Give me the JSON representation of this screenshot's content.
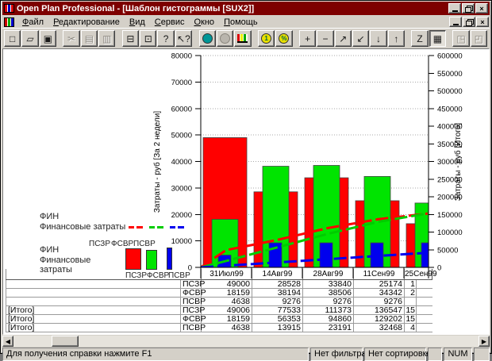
{
  "window": {
    "title": "Open Plan Professional - [Шаблон гистограммы [SUX2]]",
    "controls": {
      "minimize": "minimize",
      "restore": "restore",
      "close": "×"
    }
  },
  "menus": [
    {
      "name": "file",
      "label": "Файл"
    },
    {
      "name": "edit",
      "label": "Редактирование"
    },
    {
      "name": "view",
      "label": "Вид"
    },
    {
      "name": "service",
      "label": "Сервис"
    },
    {
      "name": "window",
      "label": "Окно"
    },
    {
      "name": "help",
      "label": "Помощь"
    }
  ],
  "toolbar": {
    "buttons": [
      {
        "name": "new",
        "glyph": "□",
        "enabled": true
      },
      {
        "name": "open",
        "glyph": "▱",
        "enabled": true
      },
      {
        "name": "save",
        "glyph": "▣",
        "enabled": true
      },
      {
        "type": "sep"
      },
      {
        "name": "cut",
        "glyph": "✂",
        "enabled": false
      },
      {
        "name": "copy",
        "glyph": "▤",
        "enabled": false
      },
      {
        "name": "paste",
        "glyph": "▥",
        "enabled": false
      },
      {
        "type": "sep"
      },
      {
        "name": "print",
        "glyph": "⊟",
        "enabled": true
      },
      {
        "name": "print-preview",
        "glyph": "⊡",
        "enabled": true
      },
      {
        "name": "help",
        "glyph": "?",
        "enabled": true
      },
      {
        "name": "context-help",
        "glyph": "↖?",
        "enabled": true
      },
      {
        "type": "sep"
      },
      {
        "name": "time-analysis",
        "kind": "circ-teal",
        "glyph": "",
        "enabled": true
      },
      {
        "name": "resource-analysis",
        "kind": "circ-gray",
        "glyph": "",
        "enabled": false
      },
      {
        "name": "histogram-view",
        "kind": "minichart",
        "glyph": "",
        "enabled": true
      },
      {
        "type": "sep"
      },
      {
        "name": "cost-mode",
        "kind": "circ-yellow",
        "glyph": "1",
        "enabled": true
      },
      {
        "name": "percent-mode",
        "kind": "circ-yellow",
        "glyph": "%",
        "enabled": true
      },
      {
        "type": "sep"
      },
      {
        "name": "add",
        "glyph": "+",
        "enabled": true
      },
      {
        "name": "remove",
        "glyph": "−",
        "enabled": true
      },
      {
        "name": "assign-forward",
        "glyph": "↗",
        "enabled": true
      },
      {
        "name": "assign-back",
        "glyph": "↙",
        "enabled": true
      },
      {
        "name": "move-down",
        "glyph": "↓",
        "enabled": true
      },
      {
        "name": "move-up",
        "glyph": "↑",
        "enabled": true
      },
      {
        "type": "sep"
      },
      {
        "name": "zoom-mode",
        "glyph": "Z",
        "enabled": true
      },
      {
        "name": "table-view",
        "glyph": "▦",
        "enabled": true,
        "pressed": true
      },
      {
        "type": "sep"
      },
      {
        "name": "window-tile",
        "glyph": "◳",
        "enabled": false
      },
      {
        "name": "window-cascade",
        "glyph": "◰",
        "enabled": false
      }
    ]
  },
  "legend_lines": {
    "title_top": "ФИН",
    "title_bottom": "Финансовые затраты",
    "items": [
      "ПСЗР",
      "ФСВР",
      "ПСВР"
    ]
  },
  "legend_bars": {
    "title_top": "ФИН",
    "title_bottom": "Финансовые затраты",
    "items": [
      "ПСЗР",
      "ФСВР",
      "ПСВР"
    ]
  },
  "colors": {
    "titlebar": "#7d0000",
    "red": "#ff0000",
    "green": "#00e400",
    "blue": "#0000ee",
    "line_red": "#ff0000",
    "line_green": "#00cc00",
    "line_blue": "#0000ee"
  },
  "chart_data": {
    "type": "bar",
    "categories": [
      "31Июл99",
      "14Авг99",
      "28Авг99",
      "11Сен99",
      "25Сен99"
    ],
    "bar_series": [
      {
        "name": "ПСЗР",
        "color": "#ff0000",
        "values": [
          49000,
          28528,
          33840,
          25174,
          16500
        ]
      },
      {
        "name": "ФСВР",
        "color": "#00e400",
        "values": [
          18159,
          38194,
          38506,
          34342,
          24300
        ]
      },
      {
        "name": "ПСВР",
        "color": "#0000ee",
        "values": [
          4638,
          9276,
          9276,
          9276,
          9276
        ]
      }
    ],
    "line_series": [
      {
        "name": "ПСЗР [Итого]",
        "color": "#ff0000",
        "values": [
          49006,
          77533,
          111373,
          136547,
          153000
        ]
      },
      {
        "name": "ФСВР [Итого]",
        "color": "#00cc00",
        "values": [
          18159,
          56353,
          94860,
          129202,
          153500
        ]
      },
      {
        "name": "ПСВР [Итого]",
        "color": "#0000ee",
        "values": [
          4638,
          13915,
          23191,
          32468,
          41700
        ]
      }
    ],
    "left_axis": {
      "title": "Затраты - руб [За 2 недели]",
      "min": 0,
      "max": 80000,
      "step": 10000
    },
    "right_axis": {
      "title": "Затраты - руб [Итого]",
      "min": 0,
      "max": 600000,
      "step": 50000
    },
    "grid": true,
    "legend_position": "left"
  },
  "table": {
    "dates": [
      "31Июл99",
      "14Авг99",
      "28Авг99",
      "11Сен99",
      "25Сен99"
    ],
    "rows": [
      {
        "group": "",
        "code": "ПСЗР",
        "values": [
          "49000",
          "28528",
          "33840",
          "25174"
        ],
        "clipped": "1"
      },
      {
        "group": "",
        "code": "ФСВР",
        "values": [
          "18159",
          "38194",
          "38506",
          "34342"
        ],
        "clipped": "2"
      },
      {
        "group": "",
        "code": "ПСВР",
        "values": [
          "4638",
          "9276",
          "9276",
          "9276"
        ],
        "clipped": ""
      },
      {
        "group": "[Итого]",
        "code": "ПСЗР",
        "values": [
          "49006",
          "77533",
          "111373",
          "136547"
        ],
        "clipped": "15"
      },
      {
        "group": "[Итого]",
        "code": "ФСВР",
        "values": [
          "18159",
          "56353",
          "94860",
          "129202"
        ],
        "clipped": "15"
      },
      {
        "group": "[Итого]",
        "code": "ПСВР",
        "values": [
          "4638",
          "13915",
          "23191",
          "32468"
        ],
        "clipped": "4"
      }
    ]
  },
  "status": {
    "help": "Для получения справки нажмите F1",
    "filter": "Нет фильтра",
    "sort": "Нет сортировки",
    "num": "NUM"
  }
}
